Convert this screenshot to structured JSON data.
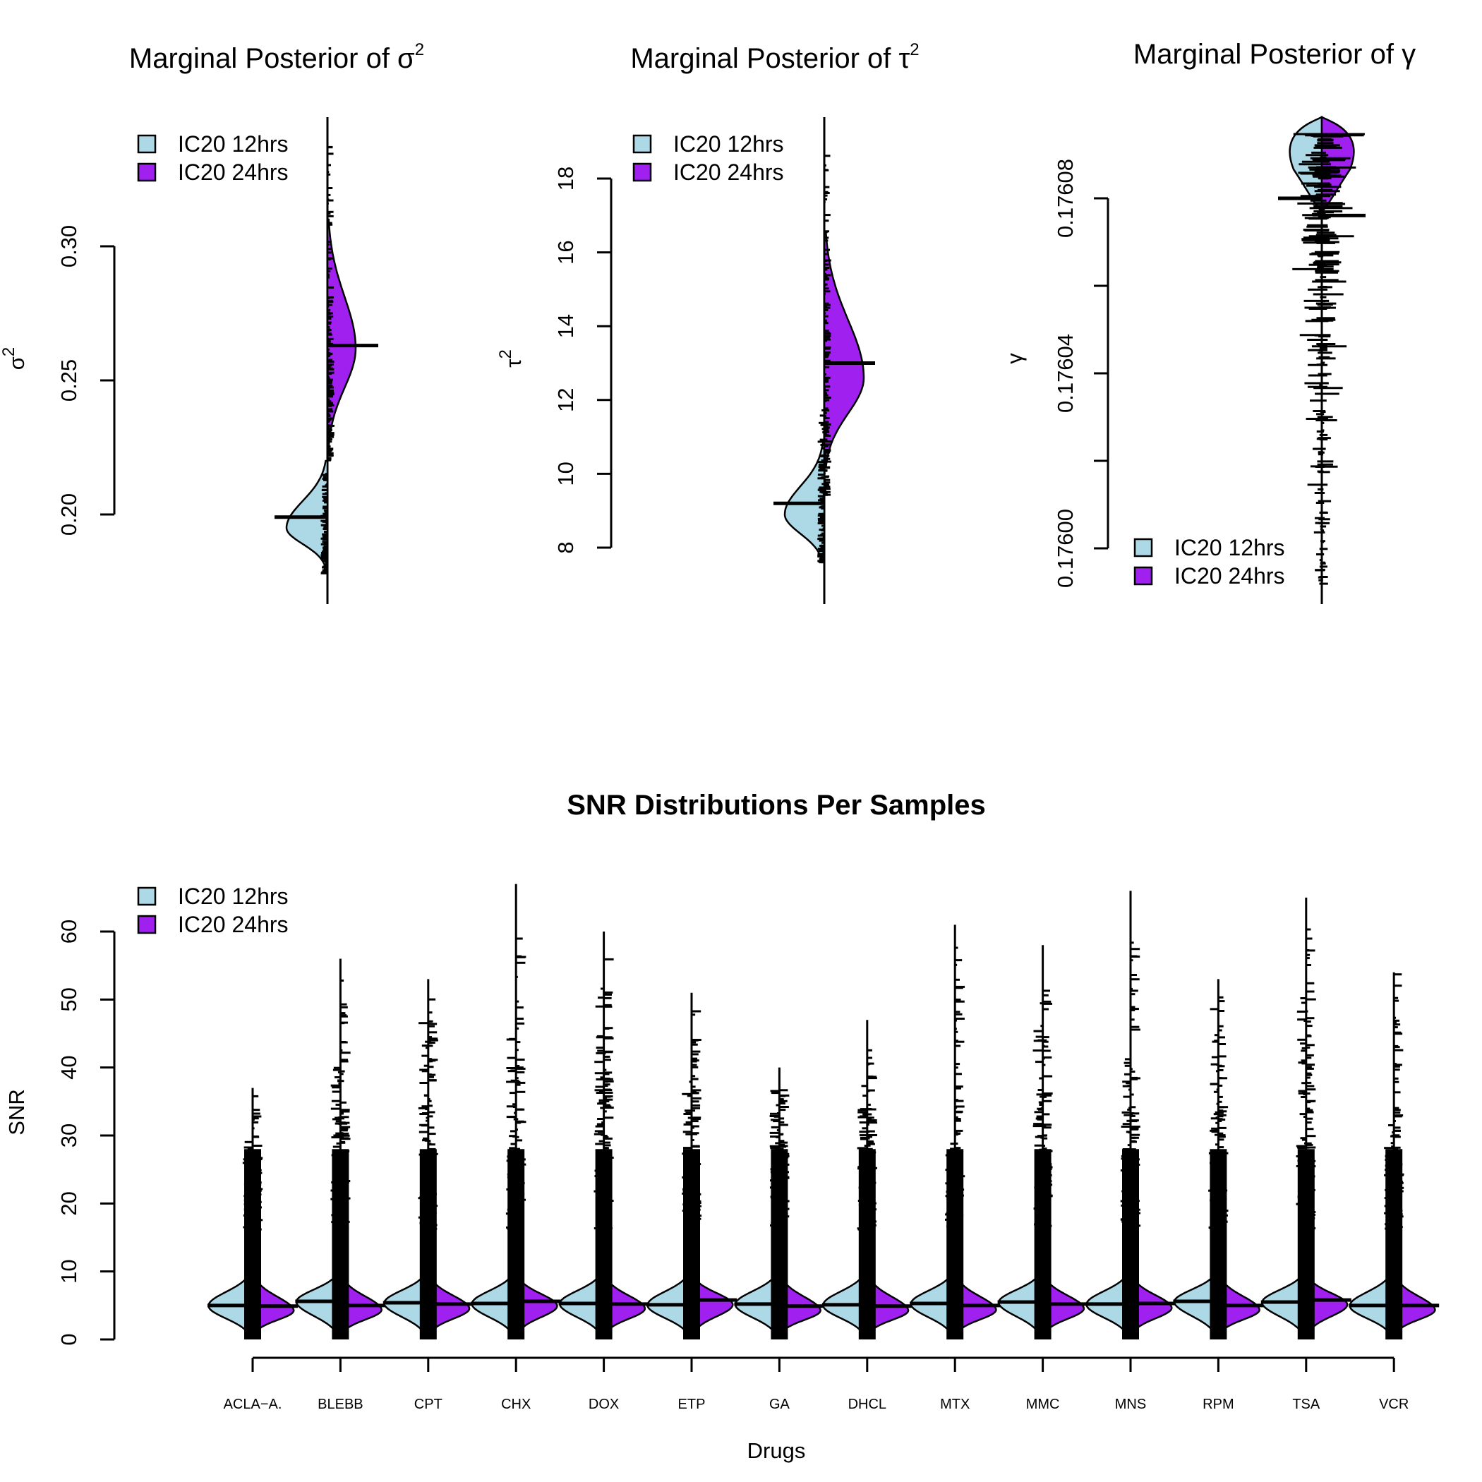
{
  "chart_data": [
    {
      "type": "violin",
      "title": "Marginal Posterior of σ",
      "title_superscript": "2",
      "ylabel": "σ",
      "ylabel_superscript": "2",
      "y_ticks": [
        "0.20",
        "0.25",
        "0.30"
      ],
      "legend": {
        "placement": "top-left",
        "entries": [
          "IC20 12hrs",
          "IC20 24hrs"
        ]
      },
      "series": [
        {
          "name": "IC20 12hrs",
          "color": "#add8e6",
          "median": 0.199,
          "min": 0.18,
          "max": 0.22,
          "mode": 0.195
        },
        {
          "name": "IC20 24hrs",
          "color": "#a020f0",
          "median": 0.263,
          "min": 0.225,
          "max": 0.31,
          "mode": 0.262
        }
      ]
    },
    {
      "type": "violin",
      "title": "Marginal Posterior of τ",
      "title_superscript": "2",
      "ylabel": "τ",
      "ylabel_superscript": "2",
      "y_ticks": [
        "8",
        "10",
        "12",
        "14",
        "16",
        "18"
      ],
      "legend": {
        "placement": "top-left",
        "entries": [
          "IC20 12hrs",
          "IC20 24hrs"
        ]
      },
      "series": [
        {
          "name": "IC20 12hrs",
          "color": "#add8e6",
          "median": 9.2,
          "min": 7.6,
          "max": 10.8,
          "mode": 8.9
        },
        {
          "name": "IC20 24hrs",
          "color": "#a020f0",
          "median": 13.0,
          "min": 10.2,
          "max": 16.5,
          "mode": 12.6
        }
      ]
    },
    {
      "type": "violin",
      "title": "Marginal Posterior of γ",
      "ylabel": "γ",
      "y_ticks": [
        "0.17600",
        "0.17604",
        "0.17608"
      ],
      "legend": {
        "placement": "bottom-left",
        "entries": [
          "IC20 12hrs",
          "IC20 24hrs"
        ]
      },
      "series": [
        {
          "name": "IC20 12hrs",
          "color": "#add8e6",
          "median": 0.17608
        },
        {
          "name": "IC20 24hrs",
          "color": "#a020f0",
          "median": 0.176078
        }
      ]
    },
    {
      "type": "split-violin",
      "title": "SNR Distributions Per Samples",
      "xlabel": "Drugs",
      "ylabel": "SNR",
      "y_ticks": [
        "0",
        "10",
        "20",
        "30",
        "40",
        "50",
        "60"
      ],
      "ylim": [
        0,
        67
      ],
      "legend": {
        "placement": "top-left",
        "entries": [
          "IC20 12hrs",
          "IC20 24hrs"
        ]
      },
      "categories": [
        "ACLA−A.",
        "BLEBB",
        "CPT",
        "CHX",
        "DOX",
        "ETP",
        "GA",
        "DHCL",
        "MTX",
        "MMC",
        "MNS",
        "RPM",
        "TSA",
        "VCR"
      ],
      "series": [
        {
          "name": "IC20 12hrs",
          "color": "#add8e6",
          "medians": [
            5.0,
            5.6,
            5.4,
            5.3,
            5.3,
            5.1,
            5.2,
            5.1,
            5.3,
            5.5,
            5.2,
            5.6,
            5.5,
            5.0
          ],
          "max": [
            30,
            47,
            50,
            49,
            56,
            40,
            40,
            40,
            29,
            55,
            48,
            50,
            55,
            32
          ]
        },
        {
          "name": "IC20 24hrs",
          "color": "#a020f0",
          "medians": [
            4.9,
            5.0,
            5.2,
            5.6,
            5.2,
            5.8,
            4.9,
            4.9,
            5.0,
            5.2,
            5.3,
            5.0,
            5.8,
            5.0
          ],
          "max": [
            37,
            56,
            53,
            67,
            60,
            51,
            40,
            47,
            61,
            58,
            66,
            53,
            65,
            54
          ]
        }
      ]
    }
  ]
}
